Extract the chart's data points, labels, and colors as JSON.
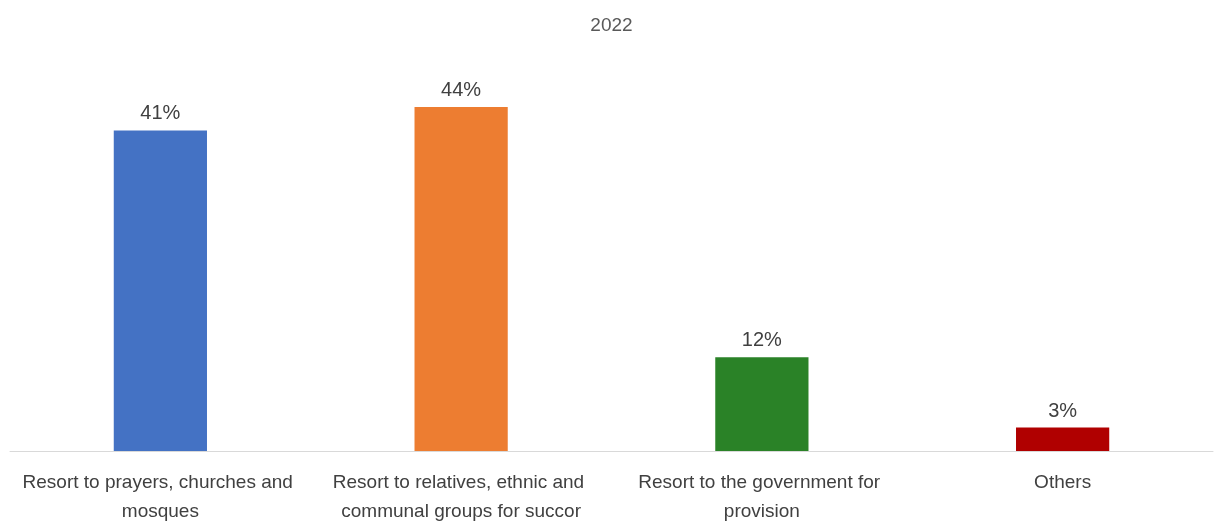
{
  "chart_data": {
    "type": "bar",
    "title": "2022",
    "categories": [
      "Resort to prayers, churches and mosques",
      "Resort to relatives, ethnic and communal groups for succor",
      "Resort to the government for provision",
      "Others"
    ],
    "values": [
      41,
      44,
      12,
      3
    ],
    "colors": [
      "#4472c4",
      "#ed7d31",
      "#2a8227",
      "#b00000"
    ],
    "value_labels": [
      "41%",
      "44%",
      "12%",
      "3%"
    ]
  }
}
